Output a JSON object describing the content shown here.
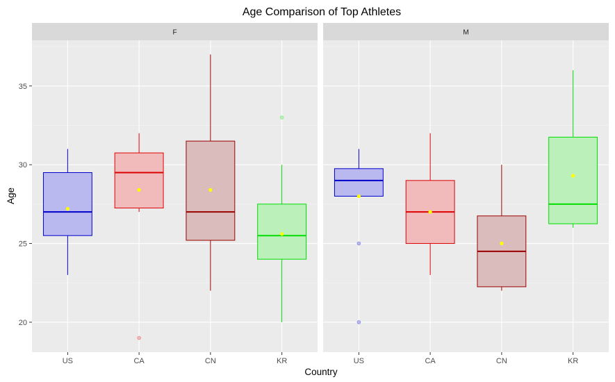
{
  "chart_data": {
    "type": "boxplot",
    "title": "Age Comparison of Top Athletes",
    "xlabel": "Country",
    "ylabel": "Age",
    "ylim": [
      18.1,
      37.9
    ],
    "yticks": [
      20,
      25,
      30,
      35
    ],
    "categories": [
      "US",
      "CA",
      "CN",
      "KR"
    ],
    "colors": {
      "US": "#0000cc",
      "CA": "#dd0000",
      "CN": "#990000",
      "KR": "#00dd00"
    },
    "fills": {
      "US": "#b9b9f0",
      "CA": "#f1bbbb",
      "CN": "#dbbcbc",
      "KR": "#bbf0bb"
    },
    "mean_color": "#ffff00",
    "grid": true,
    "facets": [
      {
        "label": "F",
        "boxes": [
          {
            "category": "US",
            "whisker_low": 23,
            "q1": 25.5,
            "median": 27,
            "q3": 29.5,
            "whisker_high": 31,
            "mean": 27.2,
            "outliers": []
          },
          {
            "category": "CA",
            "whisker_low": 27,
            "q1": 27.25,
            "median": 29.5,
            "q3": 30.75,
            "whisker_high": 32,
            "mean": 28.4,
            "outliers": [
              19
            ]
          },
          {
            "category": "CN",
            "whisker_low": 22,
            "q1": 25.2,
            "median": 27,
            "q3": 31.5,
            "whisker_high": 37,
            "mean": 28.4,
            "outliers": []
          },
          {
            "category": "KR",
            "whisker_low": 20,
            "q1": 24,
            "median": 25.5,
            "q3": 27.5,
            "whisker_high": 30,
            "mean": 25.6,
            "outliers": [
              33
            ]
          }
        ]
      },
      {
        "label": "M",
        "boxes": [
          {
            "category": "US",
            "whisker_low": 28,
            "q1": 28,
            "median": 29,
            "q3": 29.75,
            "whisker_high": 31,
            "mean": 28,
            "outliers": [
              25,
              20
            ]
          },
          {
            "category": "CA",
            "whisker_low": 23,
            "q1": 25,
            "median": 27,
            "q3": 29,
            "whisker_high": 32,
            "mean": 27,
            "outliers": []
          },
          {
            "category": "CN",
            "whisker_low": 22,
            "q1": 22.25,
            "median": 24.5,
            "q3": 26.75,
            "whisker_high": 30,
            "mean": 25,
            "outliers": []
          },
          {
            "category": "KR",
            "whisker_low": 26,
            "q1": 26.25,
            "median": 27.5,
            "q3": 31.75,
            "whisker_high": 36,
            "mean": 29.3,
            "outliers": []
          }
        ]
      }
    ]
  }
}
